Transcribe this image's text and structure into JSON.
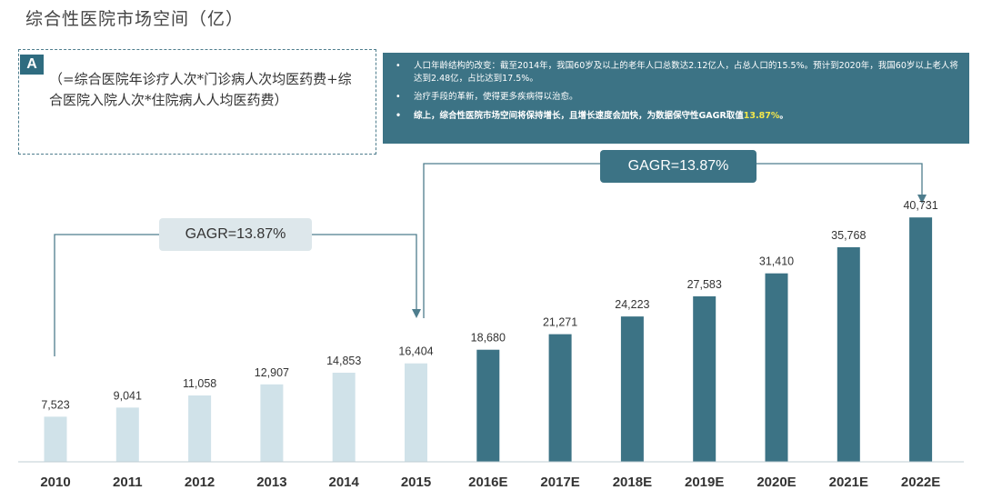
{
  "title": "综合性医院市场空间（亿）",
  "formula_box": {
    "badge": "A",
    "text": "（=综合医院年诊疗人次*门诊病人次均医药费+综合医院入院人次*住院病人人均医药费）"
  },
  "notes": [
    {
      "text": "人口年龄结构的改变：截至2014年，我国60岁及以上的老年人口总数达2.12亿人，占总人口的15.5%。预计到2020年，我国60岁以上老人将达到2.48亿，占比达到17.5%。",
      "bold": false
    },
    {
      "text": "治疗手段的革新，使得更多疾病得以治愈。",
      "bold": false
    },
    {
      "text": "综上，综合性医院市场空间将保持增长，且增长速度会加快，为数据保守性GAGR取值",
      "highlight": "13.87%",
      "suffix": "。",
      "bold": true
    }
  ],
  "gagr_labels": [
    "GAGR=13.87%",
    "GAGR=13.87%"
  ],
  "colors": {
    "historical": "#d0e2e9",
    "forecast": "#3c7385",
    "arrow": "#4e7d8d"
  },
  "chart_data": {
    "type": "bar",
    "categories": [
      "2010",
      "2011",
      "2012",
      "2013",
      "2014",
      "2015",
      "2016E",
      "2017E",
      "2018E",
      "2019E",
      "2020E",
      "2021E",
      "2022E"
    ],
    "values": [
      7523,
      9041,
      11058,
      12907,
      14853,
      16404,
      18680,
      21271,
      24223,
      27583,
      31410,
      35768,
      40731
    ],
    "value_labels": [
      "7,523",
      "9,041",
      "11,058",
      "12,907",
      "14,853",
      "16,404",
      "18,680",
      "21,271",
      "24,223",
      "27,583",
      "31,410",
      "35,768",
      "40,731"
    ],
    "forecast_from_index": 6,
    "title": "综合性医院市场空间（亿）",
    "xlabel": "",
    "ylabel": "",
    "ylim": [
      0,
      45000
    ],
    "grid": false,
    "legend": "none"
  }
}
